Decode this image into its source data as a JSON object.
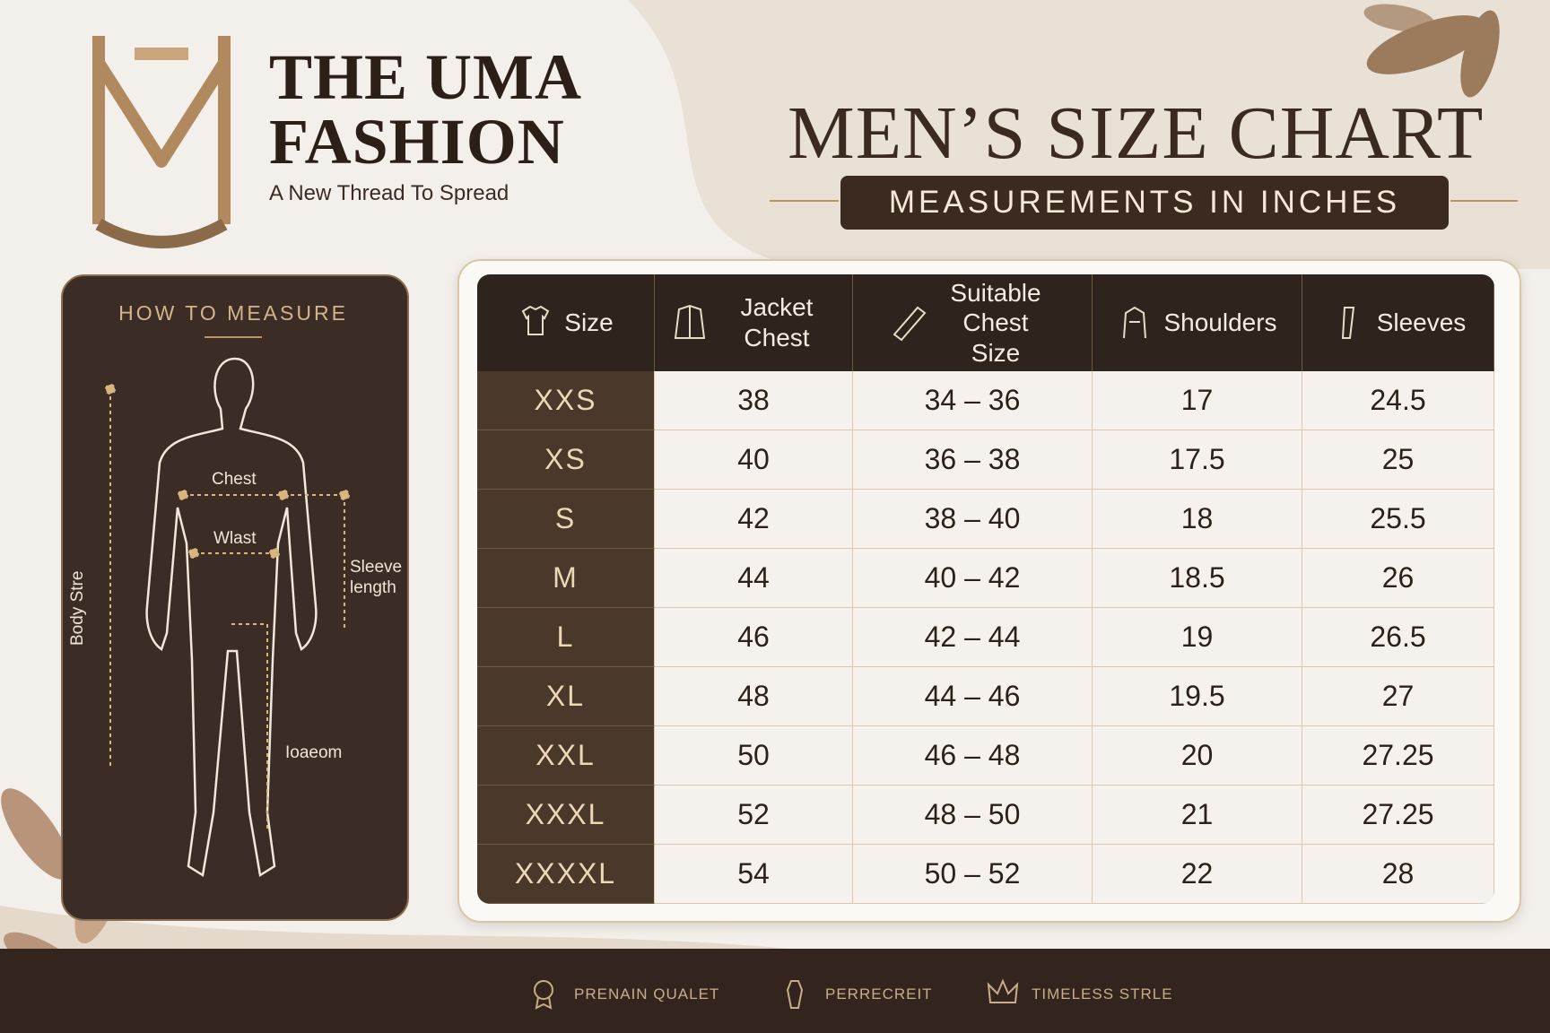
{
  "brand": {
    "line1": "THE UMA",
    "line2": "FASHION",
    "tagline": "A New Thread To Spread"
  },
  "heading": {
    "title": "MEN’S SIZE CHART",
    "subtitle": "MEASUREMENTS IN INCHES"
  },
  "how_to_measure": {
    "title": "HOW TO MEASURE",
    "labels": {
      "chest": "Chest",
      "waist": "Wlast",
      "sleeve": "Sleeve length",
      "body": "Body Stre",
      "inseam": "Ioaeom"
    }
  },
  "table": {
    "headers": [
      "Size",
      "Jacket Chest",
      "Suitable Chest Size",
      "Shoulders",
      "Sleeves"
    ],
    "rows": [
      [
        "XXS",
        38,
        "34 – 36",
        17,
        24.5
      ],
      [
        "XS",
        40,
        "36 – 38",
        17.5,
        25
      ],
      [
        "S",
        42,
        "38 – 40",
        18,
        25.5
      ],
      [
        "M",
        44,
        "40 – 42",
        18.5,
        26
      ],
      [
        "L",
        46,
        "42 – 44",
        19,
        26.5
      ],
      [
        "XL",
        48,
        "44 – 46",
        19.5,
        27
      ],
      [
        "XXL",
        50,
        "46 – 48",
        20,
        27.25
      ],
      [
        "XXXL",
        52,
        "48 – 50",
        21,
        27.25
      ],
      [
        "XXXXL",
        54,
        "50 – 52",
        22,
        28
      ]
    ]
  },
  "footer": [
    "PRENAIN QUALET",
    "PERRECREIT",
    "TIMELESS STRLE"
  ]
}
